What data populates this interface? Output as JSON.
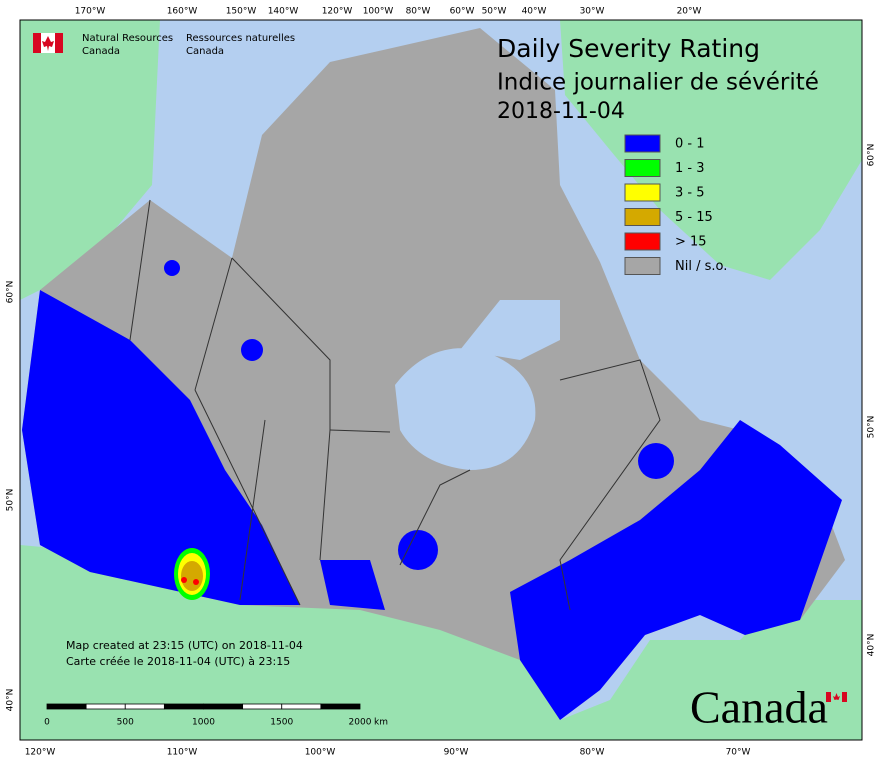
{
  "header": {
    "org_en": [
      "Natural Resources",
      "Canada"
    ],
    "org_fr": [
      "Ressources naturelles",
      "Canada"
    ]
  },
  "title": [
    "Daily Severity Rating",
    "Indice journalier de sévérité",
    "2018-11-04"
  ],
  "legend": [
    {
      "label": "0 - 1",
      "color": "#0000ff"
    },
    {
      "label": "1 - 3",
      "color": "#00ff00"
    },
    {
      "label": "3 - 5",
      "color": "#ffff00"
    },
    {
      "label": "5 - 15",
      "color": "#d4a900"
    },
    {
      "label": "> 15",
      "color": "#ff0000"
    },
    {
      "label": "Nil / s.o.",
      "color": "#a6a6a6"
    }
  ],
  "notes": [
    "Map created at 23:15 (UTC) on 2018-11-04",
    "Carte créée le 2018-11-04 (UTC) à 23:15"
  ],
  "scale_bar": {
    "labels": [
      "0",
      "500",
      "1000",
      "1500",
      "2000"
    ],
    "unit": "km"
  },
  "graticule": {
    "top": [
      "170°W",
      "160°W",
      "150°W",
      "140°W",
      "120°W",
      "100°W",
      "80°W",
      "60°W",
      "50°W",
      "40°W",
      "30°W",
      "20°W"
    ],
    "bottom": [
      "120°W",
      "110°W",
      "100°W",
      "90°W",
      "80°W",
      "70°W"
    ],
    "left": [
      "60°N",
      "50°N",
      "40°N"
    ],
    "right": [
      "60°N",
      "50°N",
      "40°N"
    ]
  },
  "wordmark": "Canada"
}
